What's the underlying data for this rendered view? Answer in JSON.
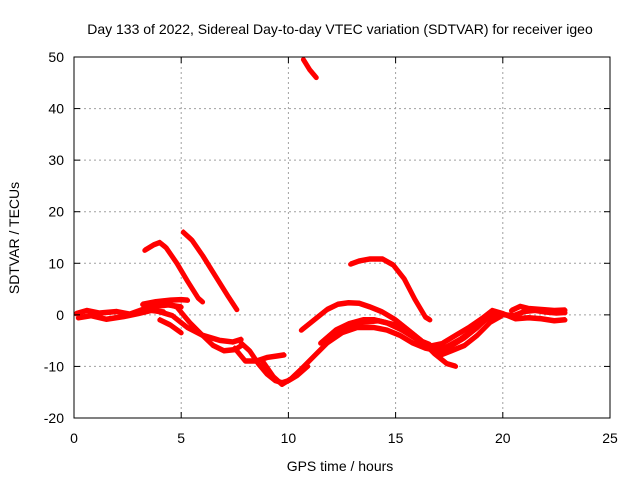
{
  "chart_data": {
    "type": "line",
    "title": "Day 133 of 2022, Sidereal Day-to-day VTEC variation (SDTVAR) for receiver igeo",
    "xlabel": "GPS time / hours",
    "ylabel": "SDTVAR / TECUs",
    "xlim": [
      0,
      25
    ],
    "ylim": [
      -20,
      50
    ],
    "xticks": [
      0,
      5,
      10,
      15,
      20,
      25
    ],
    "yticks": [
      -20,
      -10,
      0,
      10,
      20,
      30,
      40,
      50
    ],
    "grid": true,
    "colors": {
      "series": "#ff0000",
      "grid": "#a0a0a0",
      "axis": "#000000"
    },
    "series": [
      {
        "name": "arc-near-zero-morning",
        "points": [
          [
            0.1,
            0.2
          ],
          [
            0.6,
            0.8
          ],
          [
            1.2,
            0.3
          ],
          [
            2.0,
            0.6
          ],
          [
            2.6,
            0.1
          ],
          [
            3.2,
            1.0
          ],
          [
            3.8,
            1.6
          ],
          [
            4.4,
            1.9
          ],
          [
            5.0,
            1.5
          ]
        ]
      },
      {
        "name": "arc-near-zero-morning-b",
        "points": [
          [
            0.2,
            -0.6
          ],
          [
            0.8,
            -0.2
          ],
          [
            1.5,
            -0.9
          ],
          [
            2.3,
            -0.4
          ],
          [
            3.0,
            0.2
          ],
          [
            3.6,
            0.8
          ],
          [
            4.2,
            0.5
          ]
        ]
      },
      {
        "name": "arc-peak-14",
        "points": [
          [
            3.3,
            12.5
          ],
          [
            3.7,
            13.5
          ],
          [
            4.0,
            14.0
          ],
          [
            4.3,
            13.0
          ],
          [
            4.8,
            10.0
          ],
          [
            5.3,
            6.5
          ],
          [
            5.8,
            3.2
          ],
          [
            6.0,
            2.5
          ]
        ]
      },
      {
        "name": "arc-peak-16",
        "points": [
          [
            5.1,
            16.0
          ],
          [
            5.5,
            14.5
          ],
          [
            6.0,
            11.5
          ],
          [
            6.6,
            7.5
          ],
          [
            7.2,
            3.5
          ],
          [
            7.6,
            1.0
          ]
        ]
      },
      {
        "name": "arc-descend-to-minus-7",
        "points": [
          [
            4.2,
            2.3
          ],
          [
            4.8,
            1.5
          ],
          [
            5.4,
            -1.5
          ],
          [
            6.0,
            -4.0
          ],
          [
            6.5,
            -6.0
          ],
          [
            7.0,
            -7.0
          ],
          [
            7.5,
            -6.8
          ],
          [
            7.8,
            -6.0
          ]
        ]
      },
      {
        "name": "arc-descend-to-minus-5",
        "points": [
          [
            3.8,
            0.8
          ],
          [
            4.6,
            -0.2
          ],
          [
            5.3,
            -2.5
          ],
          [
            6.0,
            -4.0
          ],
          [
            6.8,
            -5.0
          ],
          [
            7.4,
            -5.3
          ],
          [
            7.8,
            -4.8
          ]
        ]
      },
      {
        "name": "arc-short-low",
        "points": [
          [
            4.0,
            -1.0
          ],
          [
            4.5,
            -2.0
          ],
          [
            5.0,
            -3.5
          ]
        ]
      },
      {
        "name": "arc-flat-near-3",
        "points": [
          [
            3.2,
            2.0
          ],
          [
            3.8,
            2.5
          ],
          [
            4.5,
            2.8
          ],
          [
            5.0,
            2.9
          ],
          [
            5.3,
            2.8
          ]
        ]
      },
      {
        "name": "arc-low-plateau",
        "points": [
          [
            7.5,
            -6.5
          ],
          [
            8.0,
            -9.0
          ],
          [
            8.5,
            -9.0
          ],
          [
            9.0,
            -8.3
          ],
          [
            9.5,
            -8.0
          ],
          [
            9.8,
            -7.8
          ]
        ]
      },
      {
        "name": "arc-dip-minus-13",
        "points": [
          [
            7.8,
            -5.5
          ],
          [
            8.2,
            -7.0
          ],
          [
            8.6,
            -9.5
          ],
          [
            9.0,
            -11.5
          ],
          [
            9.4,
            -12.8
          ],
          [
            9.7,
            -13.2
          ],
          [
            10.0,
            -12.8
          ],
          [
            10.4,
            -11.8
          ],
          [
            10.9,
            -10.0
          ]
        ]
      },
      {
        "name": "arc-main-hump",
        "points": [
          [
            8.8,
            -9.0
          ],
          [
            9.3,
            -12.0
          ],
          [
            9.7,
            -13.5
          ],
          [
            10.1,
            -12.5
          ],
          [
            10.6,
            -10.5
          ],
          [
            11.2,
            -8.0
          ],
          [
            11.8,
            -5.5
          ],
          [
            12.5,
            -3.5
          ],
          [
            13.2,
            -2.5
          ],
          [
            14.0,
            -2.5
          ],
          [
            14.6,
            -3.0
          ],
          [
            15.2,
            -4.0
          ],
          [
            15.8,
            -5.5
          ],
          [
            16.4,
            -6.5
          ],
          [
            17.0,
            -7.0
          ],
          [
            17.6,
            -6.0
          ],
          [
            18.2,
            -4.5
          ],
          [
            18.8,
            -2.5
          ],
          [
            19.3,
            -0.5
          ],
          [
            19.8,
            0.0
          ]
        ]
      },
      {
        "name": "arc-hump-upper",
        "points": [
          [
            10.6,
            -3.0
          ],
          [
            11.2,
            -1.0
          ],
          [
            11.8,
            1.0
          ],
          [
            12.3,
            2.0
          ],
          [
            12.8,
            2.3
          ],
          [
            13.3,
            2.2
          ],
          [
            13.8,
            1.5
          ],
          [
            14.4,
            0.5
          ],
          [
            15.0,
            -1.0
          ],
          [
            15.6,
            -3.0
          ],
          [
            16.2,
            -5.0
          ],
          [
            16.8,
            -7.5
          ],
          [
            17.4,
            -9.5
          ],
          [
            17.8,
            -10.0
          ]
        ]
      },
      {
        "name": "arc-hump-mid",
        "points": [
          [
            11.5,
            -5.5
          ],
          [
            12.2,
            -3.0
          ],
          [
            12.8,
            -1.8
          ],
          [
            13.5,
            -1.0
          ],
          [
            14.0,
            -1.0
          ],
          [
            14.6,
            -1.6
          ],
          [
            15.3,
            -3.0
          ],
          [
            16.0,
            -4.8
          ],
          [
            16.6,
            -5.8
          ]
        ]
      },
      {
        "name": "arc-hump-mid-b",
        "points": [
          [
            12.0,
            -4.0
          ],
          [
            12.7,
            -2.5
          ],
          [
            13.4,
            -1.5
          ],
          [
            14.2,
            -1.2
          ],
          [
            15.0,
            -2.0
          ],
          [
            15.8,
            -4.0
          ],
          [
            16.5,
            -6.2
          ],
          [
            17.2,
            -5.6
          ]
        ]
      },
      {
        "name": "arc-peak-11",
        "points": [
          [
            12.9,
            9.8
          ],
          [
            13.3,
            10.4
          ],
          [
            13.8,
            10.8
          ],
          [
            14.4,
            10.8
          ],
          [
            14.9,
            9.6
          ],
          [
            15.4,
            7.0
          ],
          [
            15.9,
            3.0
          ],
          [
            16.4,
            -0.5
          ],
          [
            16.6,
            -1.0
          ]
        ]
      },
      {
        "name": "arc-peak-48",
        "points": [
          [
            10.7,
            49.5
          ],
          [
            11.0,
            47.5
          ],
          [
            11.3,
            46.0
          ]
        ]
      },
      {
        "name": "arc-evening-rise",
        "points": [
          [
            16.8,
            -7.0
          ],
          [
            17.4,
            -6.2
          ],
          [
            18.0,
            -4.8
          ],
          [
            18.6,
            -3.0
          ],
          [
            19.2,
            -1.0
          ],
          [
            19.6,
            0.3
          ],
          [
            20.0,
            0.0
          ],
          [
            20.5,
            -0.2
          ],
          [
            21.0,
            0.6
          ],
          [
            21.5,
            0.8
          ],
          [
            22.0,
            0.5
          ],
          [
            22.5,
            0.3
          ],
          [
            22.9,
            0.4
          ]
        ]
      },
      {
        "name": "arc-evening-rise-b",
        "points": [
          [
            17.2,
            -5.5
          ],
          [
            17.8,
            -4.0
          ],
          [
            18.4,
            -2.5
          ],
          [
            19.0,
            -0.8
          ],
          [
            19.5,
            0.8
          ],
          [
            20.0,
            0.2
          ],
          [
            20.6,
            -0.8
          ],
          [
            21.2,
            -0.6
          ],
          [
            21.8,
            -0.8
          ],
          [
            22.4,
            -1.2
          ],
          [
            22.9,
            -1.0
          ]
        ]
      },
      {
        "name": "arc-evening-b-top",
        "points": [
          [
            20.4,
            0.8
          ],
          [
            20.8,
            1.6
          ],
          [
            21.2,
            1.2
          ],
          [
            21.8,
            1.0
          ],
          [
            22.4,
            0.8
          ],
          [
            22.9,
            0.9
          ]
        ]
      },
      {
        "name": "arc-evening-lower",
        "points": [
          [
            17.0,
            -8.0
          ],
          [
            17.6,
            -7.0
          ],
          [
            18.2,
            -6.0
          ],
          [
            18.8,
            -4.0
          ],
          [
            19.4,
            -1.5
          ],
          [
            19.9,
            -0.3
          ]
        ]
      }
    ]
  }
}
